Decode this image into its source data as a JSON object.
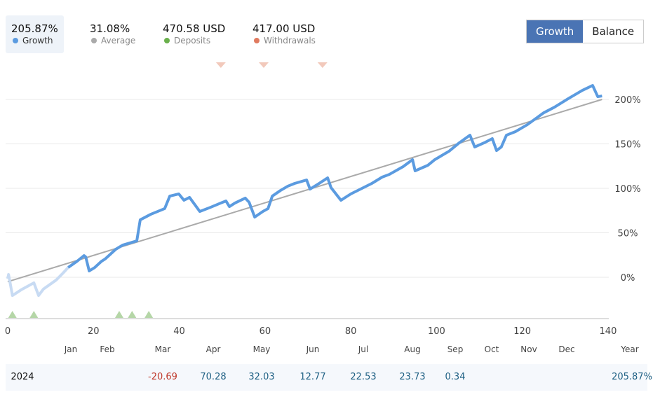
{
  "stats": [
    {
      "value": "205.87%",
      "label": "Growth",
      "color": "#5b9be0"
    },
    {
      "value": "31.08%",
      "label": "Average",
      "color": "#aaaaaa"
    },
    {
      "value": "470.58 USD",
      "label": "Deposits",
      "color": "#6ab04c"
    },
    {
      "value": "417.00 USD",
      "label": "Withdrawals",
      "color": "#e07a5f"
    }
  ],
  "toggle": {
    "growth": "Growth",
    "balance": "Balance"
  },
  "chart_data": {
    "type": "line",
    "xlim": [
      0,
      140
    ],
    "ylim": [
      -46,
      230
    ],
    "x_ticks": [
      0,
      20,
      40,
      60,
      80,
      100,
      120,
      140
    ],
    "y_ticks": [
      0,
      50,
      100,
      150,
      200
    ],
    "y_tick_labels": [
      "0%",
      "50%",
      "100%",
      "150%",
      "200%"
    ],
    "series": [
      {
        "name": "Growth",
        "color": "#5b9be0",
        "faded_until": 14.1,
        "points": [
          [
            0,
            -1.6
          ],
          [
            0.2,
            3.1
          ],
          [
            1.1,
            -20.5
          ],
          [
            3.1,
            -14.2
          ],
          [
            6.1,
            -6.3
          ],
          [
            7.2,
            -20.5
          ],
          [
            8.3,
            -13.4
          ],
          [
            11.3,
            -3.1
          ],
          [
            12.9,
            4.7
          ],
          [
            14.1,
            11
          ],
          [
            16.2,
            18.1
          ],
          [
            17.8,
            24.4
          ],
          [
            18.2,
            22.8
          ],
          [
            19,
            7.1
          ],
          [
            20.3,
            11
          ],
          [
            21.9,
            18.1
          ],
          [
            22.7,
            20.5
          ],
          [
            25.2,
            31.5
          ],
          [
            26.8,
            36.2
          ],
          [
            30.1,
            40.9
          ],
          [
            30.9,
            64.6
          ],
          [
            33.4,
            70.9
          ],
          [
            36.6,
            77.2
          ],
          [
            37.8,
            91.3
          ],
          [
            39.9,
            93.7
          ],
          [
            41.1,
            86.6
          ],
          [
            42.4,
            89.8
          ],
          [
            44.8,
            74
          ],
          [
            47.3,
            78.7
          ],
          [
            49.7,
            83.5
          ],
          [
            50.9,
            85.8
          ],
          [
            51.7,
            79.5
          ],
          [
            53,
            83.5
          ],
          [
            55.4,
            89
          ],
          [
            56.3,
            84.3
          ],
          [
            57.6,
            67.7
          ],
          [
            59.5,
            74
          ],
          [
            60.7,
            77.2
          ],
          [
            61.7,
            91.3
          ],
          [
            63.6,
            97.6
          ],
          [
            65.3,
            102.4
          ],
          [
            66.9,
            105.5
          ],
          [
            69.7,
            109.4
          ],
          [
            70.5,
            99.2
          ],
          [
            72.6,
            105.5
          ],
          [
            74.6,
            111.8
          ],
          [
            75.4,
            100.8
          ],
          [
            77.7,
            86.6
          ],
          [
            80,
            93.7
          ],
          [
            84.9,
            105.5
          ],
          [
            87.3,
            112.6
          ],
          [
            89,
            115.7
          ],
          [
            92.2,
            124.4
          ],
          [
            94.4,
            132.3
          ],
          [
            95,
            119.7
          ],
          [
            98,
            126
          ],
          [
            99.6,
            132.3
          ],
          [
            102.9,
            141.7
          ],
          [
            105.3,
            151.2
          ],
          [
            107.8,
            159.8
          ],
          [
            108.9,
            146.5
          ],
          [
            111.1,
            151.2
          ],
          [
            113,
            155.9
          ],
          [
            114,
            142.5
          ],
          [
            115.1,
            146.5
          ],
          [
            116.3,
            159.8
          ],
          [
            118.4,
            163.8
          ],
          [
            121.2,
            171.7
          ],
          [
            125,
            185
          ],
          [
            127.5,
            191.3
          ],
          [
            130.7,
            200.8
          ],
          [
            134,
            210.2
          ],
          [
            136.4,
            215.7
          ],
          [
            137.6,
            203.1
          ],
          [
            138.6,
            203.9
          ]
        ]
      },
      {
        "name": "Average",
        "color": "#aaaaaa",
        "points": [
          [
            0,
            -5
          ],
          [
            138.6,
            200
          ]
        ]
      }
    ],
    "deposit_markers": [
      1.1,
      6.1,
      26.0,
      29.0,
      32.9
    ],
    "withdrawal_markers": [
      49.7,
      59.7,
      73.4
    ]
  },
  "table": {
    "months": [
      "Jan",
      "Feb",
      "Mar",
      "Apr",
      "May",
      "Jun",
      "Jul",
      "Aug",
      "Sep",
      "Oct",
      "Nov",
      "Dec",
      "Year"
    ],
    "year": "2024",
    "values": [
      "",
      "",
      "-20.69",
      "70.28",
      "32.03",
      "12.77",
      "22.53",
      "23.73",
      "0.34",
      "",
      "",
      "",
      "205.87%"
    ],
    "negative_color": "#c0392b"
  }
}
